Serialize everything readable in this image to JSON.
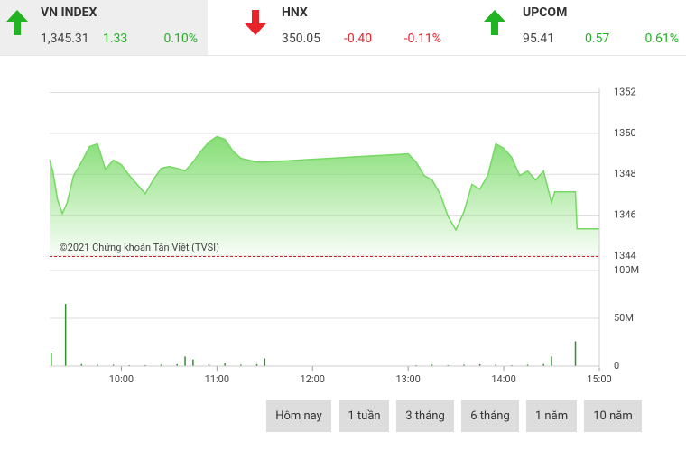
{
  "indices": [
    {
      "name": "VN INDEX",
      "value": "1,345.31",
      "change": "1.33",
      "percent": "0.10%",
      "trend": "up",
      "color": "#22b322"
    },
    {
      "name": "HNX",
      "value": "350.05",
      "change": "-0.40",
      "percent": "-0.11%",
      "trend": "down",
      "color": "#e8242b"
    },
    {
      "name": "UPCOM",
      "value": "95.41",
      "change": "0.57",
      "percent": "0.61%",
      "trend": "up",
      "color": "#22b322"
    }
  ],
  "chart_data": [
    {
      "type": "area",
      "annotation": "©2021 Chứng khoán Tân Việt (TVSI)",
      "color": "#74d863",
      "x": [
        "09:15",
        "09:17",
        "09:20",
        "09:23",
        "09:26",
        "09:30",
        "09:35",
        "09:40",
        "09:45",
        "09:50",
        "09:55",
        "10:00",
        "10:05",
        "10:10",
        "10:15",
        "10:20",
        "10:25",
        "10:30",
        "10:35",
        "10:40",
        "10:45",
        "10:50",
        "10:55",
        "11:00",
        "11:05",
        "11:10",
        "11:15",
        "11:20",
        "11:25",
        "11:30",
        "13:00",
        "13:05",
        "13:10",
        "13:15",
        "13:20",
        "13:25",
        "13:30",
        "13:35",
        "13:40",
        "13:45",
        "13:50",
        "13:55",
        "14:00",
        "14:05",
        "14:10",
        "14:15",
        "14:20",
        "14:25",
        "14:30",
        "14:32",
        "14:45",
        "14:46",
        "15:00"
      ],
      "values": [
        1348.69,
        1348.16,
        1346.74,
        1346.08,
        1346.61,
        1347.94,
        1348.6,
        1349.35,
        1349.49,
        1348.25,
        1348.69,
        1348.47,
        1347.94,
        1347.5,
        1347.05,
        1347.72,
        1348.29,
        1348.38,
        1348.29,
        1348.16,
        1348.6,
        1349.13,
        1349.58,
        1349.84,
        1349.71,
        1349.13,
        1348.78,
        1348.69,
        1348.6,
        1348.6,
        1349.0,
        1348.6,
        1347.94,
        1347.72,
        1347.05,
        1345.95,
        1345.28,
        1346.17,
        1347.5,
        1347.28,
        1347.94,
        1349.49,
        1349.27,
        1348.82,
        1347.94,
        1348.16,
        1347.72,
        1348.16,
        1346.61,
        1347.14,
        1347.14,
        1345.33,
        1345.33
      ],
      "reference_line": 1343.98,
      "reference_color": "#cc2222",
      "xlim": [
        "09:15",
        "15:00"
      ],
      "xticks": [
        "10:00",
        "11:00",
        "12:00",
        "13:00",
        "14:00",
        "15:00"
      ],
      "ylim": [
        1344,
        1352.2
      ],
      "yticks": [
        1344,
        1346,
        1348,
        1350,
        1352
      ],
      "grid": true
    },
    {
      "type": "bar",
      "color": "#2f8f2f",
      "x": [
        "09:16",
        "09:25",
        "09:35",
        "09:45",
        "09:55",
        "10:05",
        "10:15",
        "10:25",
        "10:35",
        "10:40",
        "10:45",
        "10:55",
        "11:05",
        "11:15",
        "11:25",
        "11:30",
        "13:05",
        "13:15",
        "13:25",
        "13:35",
        "13:45",
        "13:55",
        "14:05",
        "14:15",
        "14:25",
        "14:30",
        "14:45"
      ],
      "values": [
        14000000,
        65000000,
        2000000,
        1500000,
        1500000,
        1000000,
        1000000,
        1500000,
        2000000,
        10000000,
        7000000,
        2000000,
        3000000,
        1500000,
        2000000,
        8000000,
        1000000,
        1500000,
        1000000,
        1500000,
        2000000,
        1500000,
        1000000,
        1500000,
        2000000,
        10000000,
        26000000
      ],
      "xlim": [
        "09:15",
        "15:00"
      ],
      "ylim": [
        0,
        100000000
      ],
      "yticks": [
        0,
        {
          "value": 50000000,
          "label": "50M"
        },
        {
          "value": 100000000,
          "label": "100M"
        }
      ],
      "grid": true
    }
  ],
  "buttons": [
    "Hôm nay",
    "1 tuần",
    "3 tháng",
    "6 tháng",
    "1 năm",
    "10 năm"
  ]
}
